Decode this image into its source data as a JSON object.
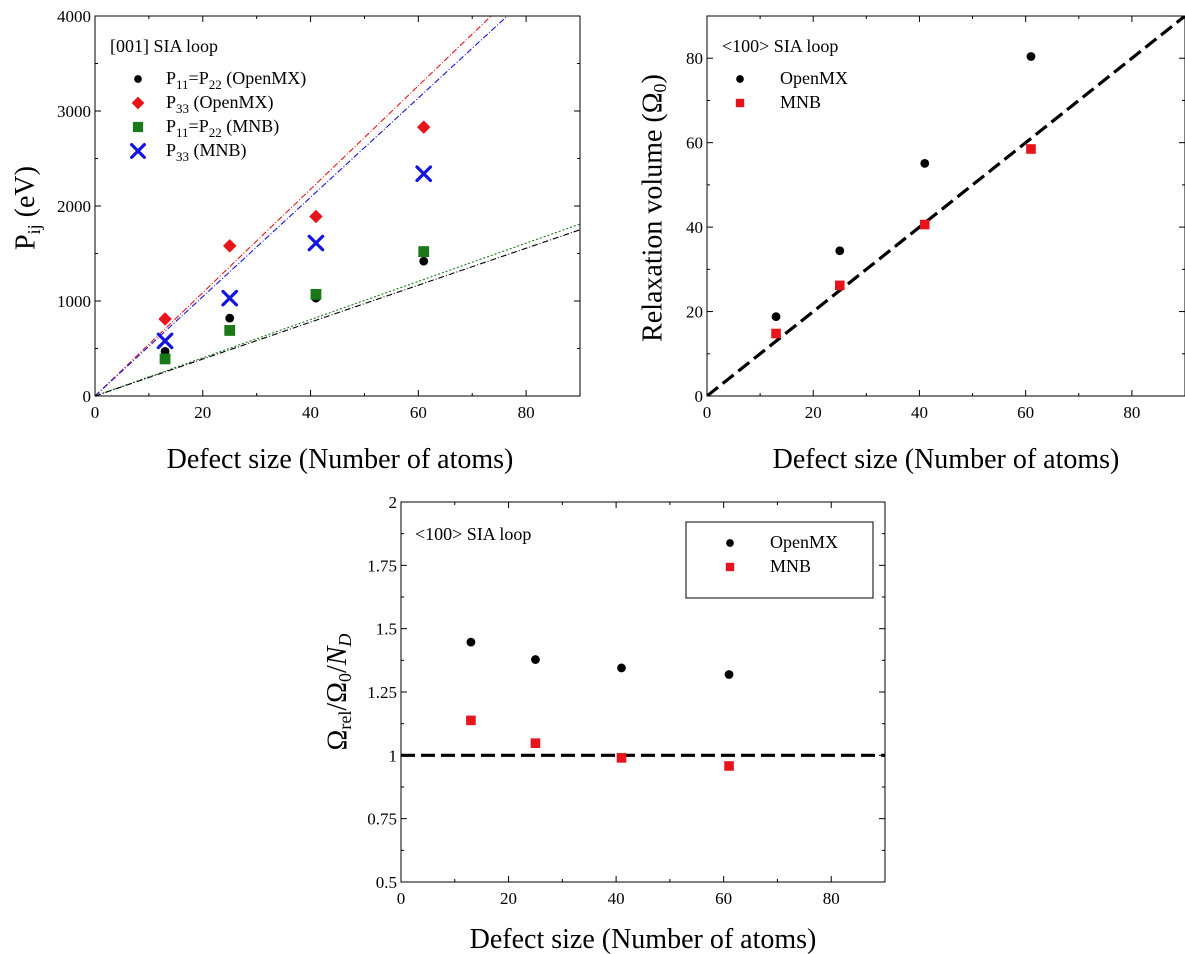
{
  "chart_data": [
    {
      "type": "scatter",
      "annotation": "[001] SIA loop",
      "xlabel": "Defect size (Number of atoms)",
      "ylabel": "P_ij (eV)",
      "xlim": [
        0,
        90
      ],
      "ylim": [
        0,
        4000
      ],
      "xticks": [
        0,
        20,
        40,
        60,
        80
      ],
      "yticks": [
        0,
        1000,
        2000,
        3000,
        4000
      ],
      "legend_position": "top-left",
      "series": [
        {
          "name": "P11=P22 (OpenMX)",
          "marker": "circle",
          "color": "#000000",
          "x": [
            13,
            25,
            41,
            61
          ],
          "y": [
            470,
            820,
            1030,
            1420
          ]
        },
        {
          "name": "P33 (OpenMX)",
          "marker": "diamond",
          "color": "#e8141b",
          "x": [
            13,
            25,
            41,
            61
          ],
          "y": [
            810,
            1580,
            1890,
            2830
          ]
        },
        {
          "name": "P11=P22 (MNB)",
          "marker": "square",
          "color": "#1a7a1a",
          "x": [
            13,
            25,
            41,
            61
          ],
          "y": [
            390,
            690,
            1070,
            1520
          ]
        },
        {
          "name": "P33 (MNB)",
          "marker": "cross",
          "color": "#1414e0",
          "x": [
            13,
            25,
            41,
            61
          ],
          "y": [
            580,
            1030,
            1610,
            2340
          ]
        }
      ],
      "lines": [
        {
          "color": "#e8141b",
          "dash": "dashdot",
          "x": [
            0,
            73.5
          ],
          "y": [
            0,
            4000
          ]
        },
        {
          "color": "#1414e0",
          "dash": "dashdot",
          "x": [
            0,
            76.5
          ],
          "y": [
            0,
            4000
          ]
        },
        {
          "color": "#1a7a1a",
          "dash": "dot",
          "x": [
            0,
            90
          ],
          "y": [
            0,
            1810
          ]
        },
        {
          "color": "#000000",
          "dash": "dashdot",
          "x": [
            0,
            90
          ],
          "y": [
            0,
            1750
          ]
        }
      ]
    },
    {
      "type": "scatter",
      "annotation": "<100> SIA loop",
      "xlabel": "Defect size (Number of atoms)",
      "ylabel": "Relaxation volume (Ω0)",
      "xlim": [
        0,
        90
      ],
      "ylim": [
        0,
        90
      ],
      "xticks": [
        0,
        20,
        40,
        60,
        80
      ],
      "yticks": [
        0,
        20,
        40,
        60,
        80
      ],
      "legend_position": "top-left",
      "series": [
        {
          "name": "OpenMX",
          "marker": "circle",
          "color": "#000000",
          "x": [
            13,
            25,
            41,
            61
          ],
          "y": [
            18.8,
            34.4,
            55.1,
            80.4
          ]
        },
        {
          "name": "MNB",
          "marker": "square",
          "color": "#e8141b",
          "x": [
            13,
            25,
            41,
            61
          ],
          "y": [
            14.8,
            26.2,
            40.6,
            58.5
          ]
        }
      ],
      "lines": [
        {
          "color": "#000000",
          "dash": "long",
          "x": [
            0,
            90
          ],
          "y": [
            0,
            90
          ]
        }
      ]
    },
    {
      "type": "scatter",
      "annotation": "<100> SIA loop",
      "xlabel": "Defect size (Number of atoms)",
      "ylabel": "Ωrel/Ω0/ND",
      "xlim": [
        0,
        90
      ],
      "ylim": [
        0.5,
        2
      ],
      "xticks": [
        0,
        20,
        40,
        60,
        80
      ],
      "yticks": [
        0.5,
        0.75,
        1,
        1.25,
        1.5,
        1.75,
        2
      ],
      "ytick_labels": [
        "0.5",
        "0.75",
        "1",
        "1.25",
        "1.5",
        "1.75",
        "2"
      ],
      "legend_position": "top-right",
      "series": [
        {
          "name": "OpenMX",
          "marker": "circle",
          "color": "#000000",
          "x": [
            13,
            25,
            41,
            61
          ],
          "y": [
            1.447,
            1.378,
            1.345,
            1.319
          ]
        },
        {
          "name": "MNB",
          "marker": "square",
          "color": "#e8141b",
          "x": [
            13,
            25,
            41,
            61
          ],
          "y": [
            1.138,
            1.048,
            0.99,
            0.958
          ]
        }
      ],
      "lines": [
        {
          "color": "#000000",
          "dash": "long",
          "x": [
            0,
            90
          ],
          "y": [
            1,
            1
          ]
        }
      ]
    }
  ]
}
